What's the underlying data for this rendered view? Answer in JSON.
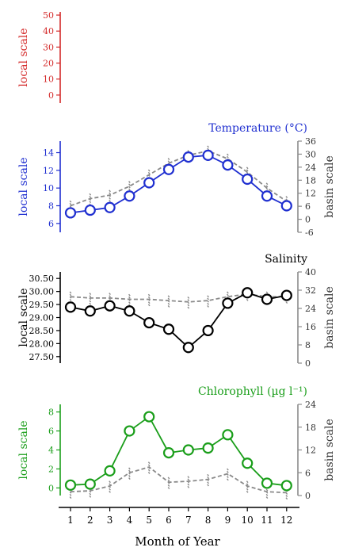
{
  "figure": {
    "xlabel": "Month of Year",
    "local_label": "local scale",
    "basin_label": "basin scale"
  },
  "colors": {
    "red": "#d42a2a",
    "blue": "#1f2fd0",
    "black": "#000000",
    "green": "#1a9e1a",
    "basin": "#8a8a8a"
  },
  "chart_data": [
    {
      "type": "line",
      "title": "",
      "ylabel": "local scale",
      "color": "red",
      "ylim": [
        -5,
        52
      ],
      "yticks": [
        "50",
        "40",
        "30",
        "20",
        "10",
        "0"
      ],
      "x": [],
      "series": []
    },
    {
      "type": "line",
      "title": "Temperature (°C)",
      "ylabel": "local scale",
      "ylabel_right": "basin scale",
      "color": "blue",
      "ylim": [
        5,
        15.3
      ],
      "yticks": [
        "14",
        "12",
        "10",
        "8",
        "6"
      ],
      "ylim_right": [
        -6,
        36
      ],
      "yticks_right": [
        "36",
        "30",
        "24",
        "18",
        "12",
        "6",
        "0",
        "-6"
      ],
      "x": [
        1,
        2,
        3,
        4,
        5,
        6,
        7,
        8,
        9,
        10,
        11,
        12
      ],
      "series": [
        {
          "role": "local",
          "values": [
            7.2,
            7.5,
            7.8,
            9.1,
            10.6,
            12.1,
            13.5,
            13.7,
            12.6,
            11.0,
            9.1,
            8.0
          ]
        },
        {
          "role": "basin",
          "values": [
            8.0,
            8.8,
            9.2,
            10.2,
            11.5,
            12.8,
            13.7,
            14.2,
            13.3,
            11.8,
            10.0,
            8.5
          ]
        }
      ]
    },
    {
      "type": "line",
      "title": "Salinity",
      "ylabel": "local scale",
      "ylabel_right": "basin scale",
      "color": "black",
      "ylim": [
        27.25,
        30.75
      ],
      "yticks": [
        "30.50",
        "30.00",
        "29.50",
        "29.00",
        "28.50",
        "28.00",
        "27.50"
      ],
      "ylim_right": [
        0,
        40
      ],
      "yticks_right": [
        "40",
        "32",
        "24",
        "16",
        "8",
        "0"
      ],
      "x": [
        1,
        2,
        3,
        4,
        5,
        6,
        7,
        8,
        9,
        10,
        11,
        12
      ],
      "series": [
        {
          "role": "local",
          "values": [
            29.4,
            29.25,
            29.45,
            29.25,
            28.8,
            28.55,
            27.85,
            28.5,
            29.55,
            29.95,
            29.7,
            29.85
          ]
        },
        {
          "role": "basin",
          "values": [
            29.8,
            29.75,
            29.75,
            29.7,
            29.7,
            29.65,
            29.6,
            29.65,
            29.8,
            29.9,
            29.8,
            29.8
          ]
        }
      ]
    },
    {
      "type": "line",
      "title": "Chlorophyll (µg l⁻¹)",
      "ylabel": "local scale",
      "ylabel_right": "basin scale",
      "color": "green",
      "ylim": [
        -0.8,
        8.8
      ],
      "yticks": [
        "8",
        "6",
        "4",
        "2",
        "0"
      ],
      "ylim_right": [
        0,
        24
      ],
      "yticks_right": [
        "24",
        "18",
        "12",
        "6",
        "0"
      ],
      "x": [
        1,
        2,
        3,
        4,
        5,
        6,
        7,
        8,
        9,
        10,
        11,
        12
      ],
      "xticks": [
        "1",
        "2",
        "3",
        "4",
        "5",
        "6",
        "7",
        "8",
        "9",
        "10",
        "11",
        "12"
      ],
      "series": [
        {
          "role": "local",
          "values": [
            0.3,
            0.4,
            1.8,
            6.0,
            7.5,
            3.7,
            4.0,
            4.2,
            5.6,
            2.6,
            0.5,
            0.25
          ]
        },
        {
          "role": "basin",
          "values": [
            -0.4,
            -0.3,
            0.2,
            1.6,
            2.2,
            0.6,
            0.7,
            0.9,
            1.5,
            0.2,
            -0.4,
            -0.5
          ]
        }
      ]
    }
  ]
}
